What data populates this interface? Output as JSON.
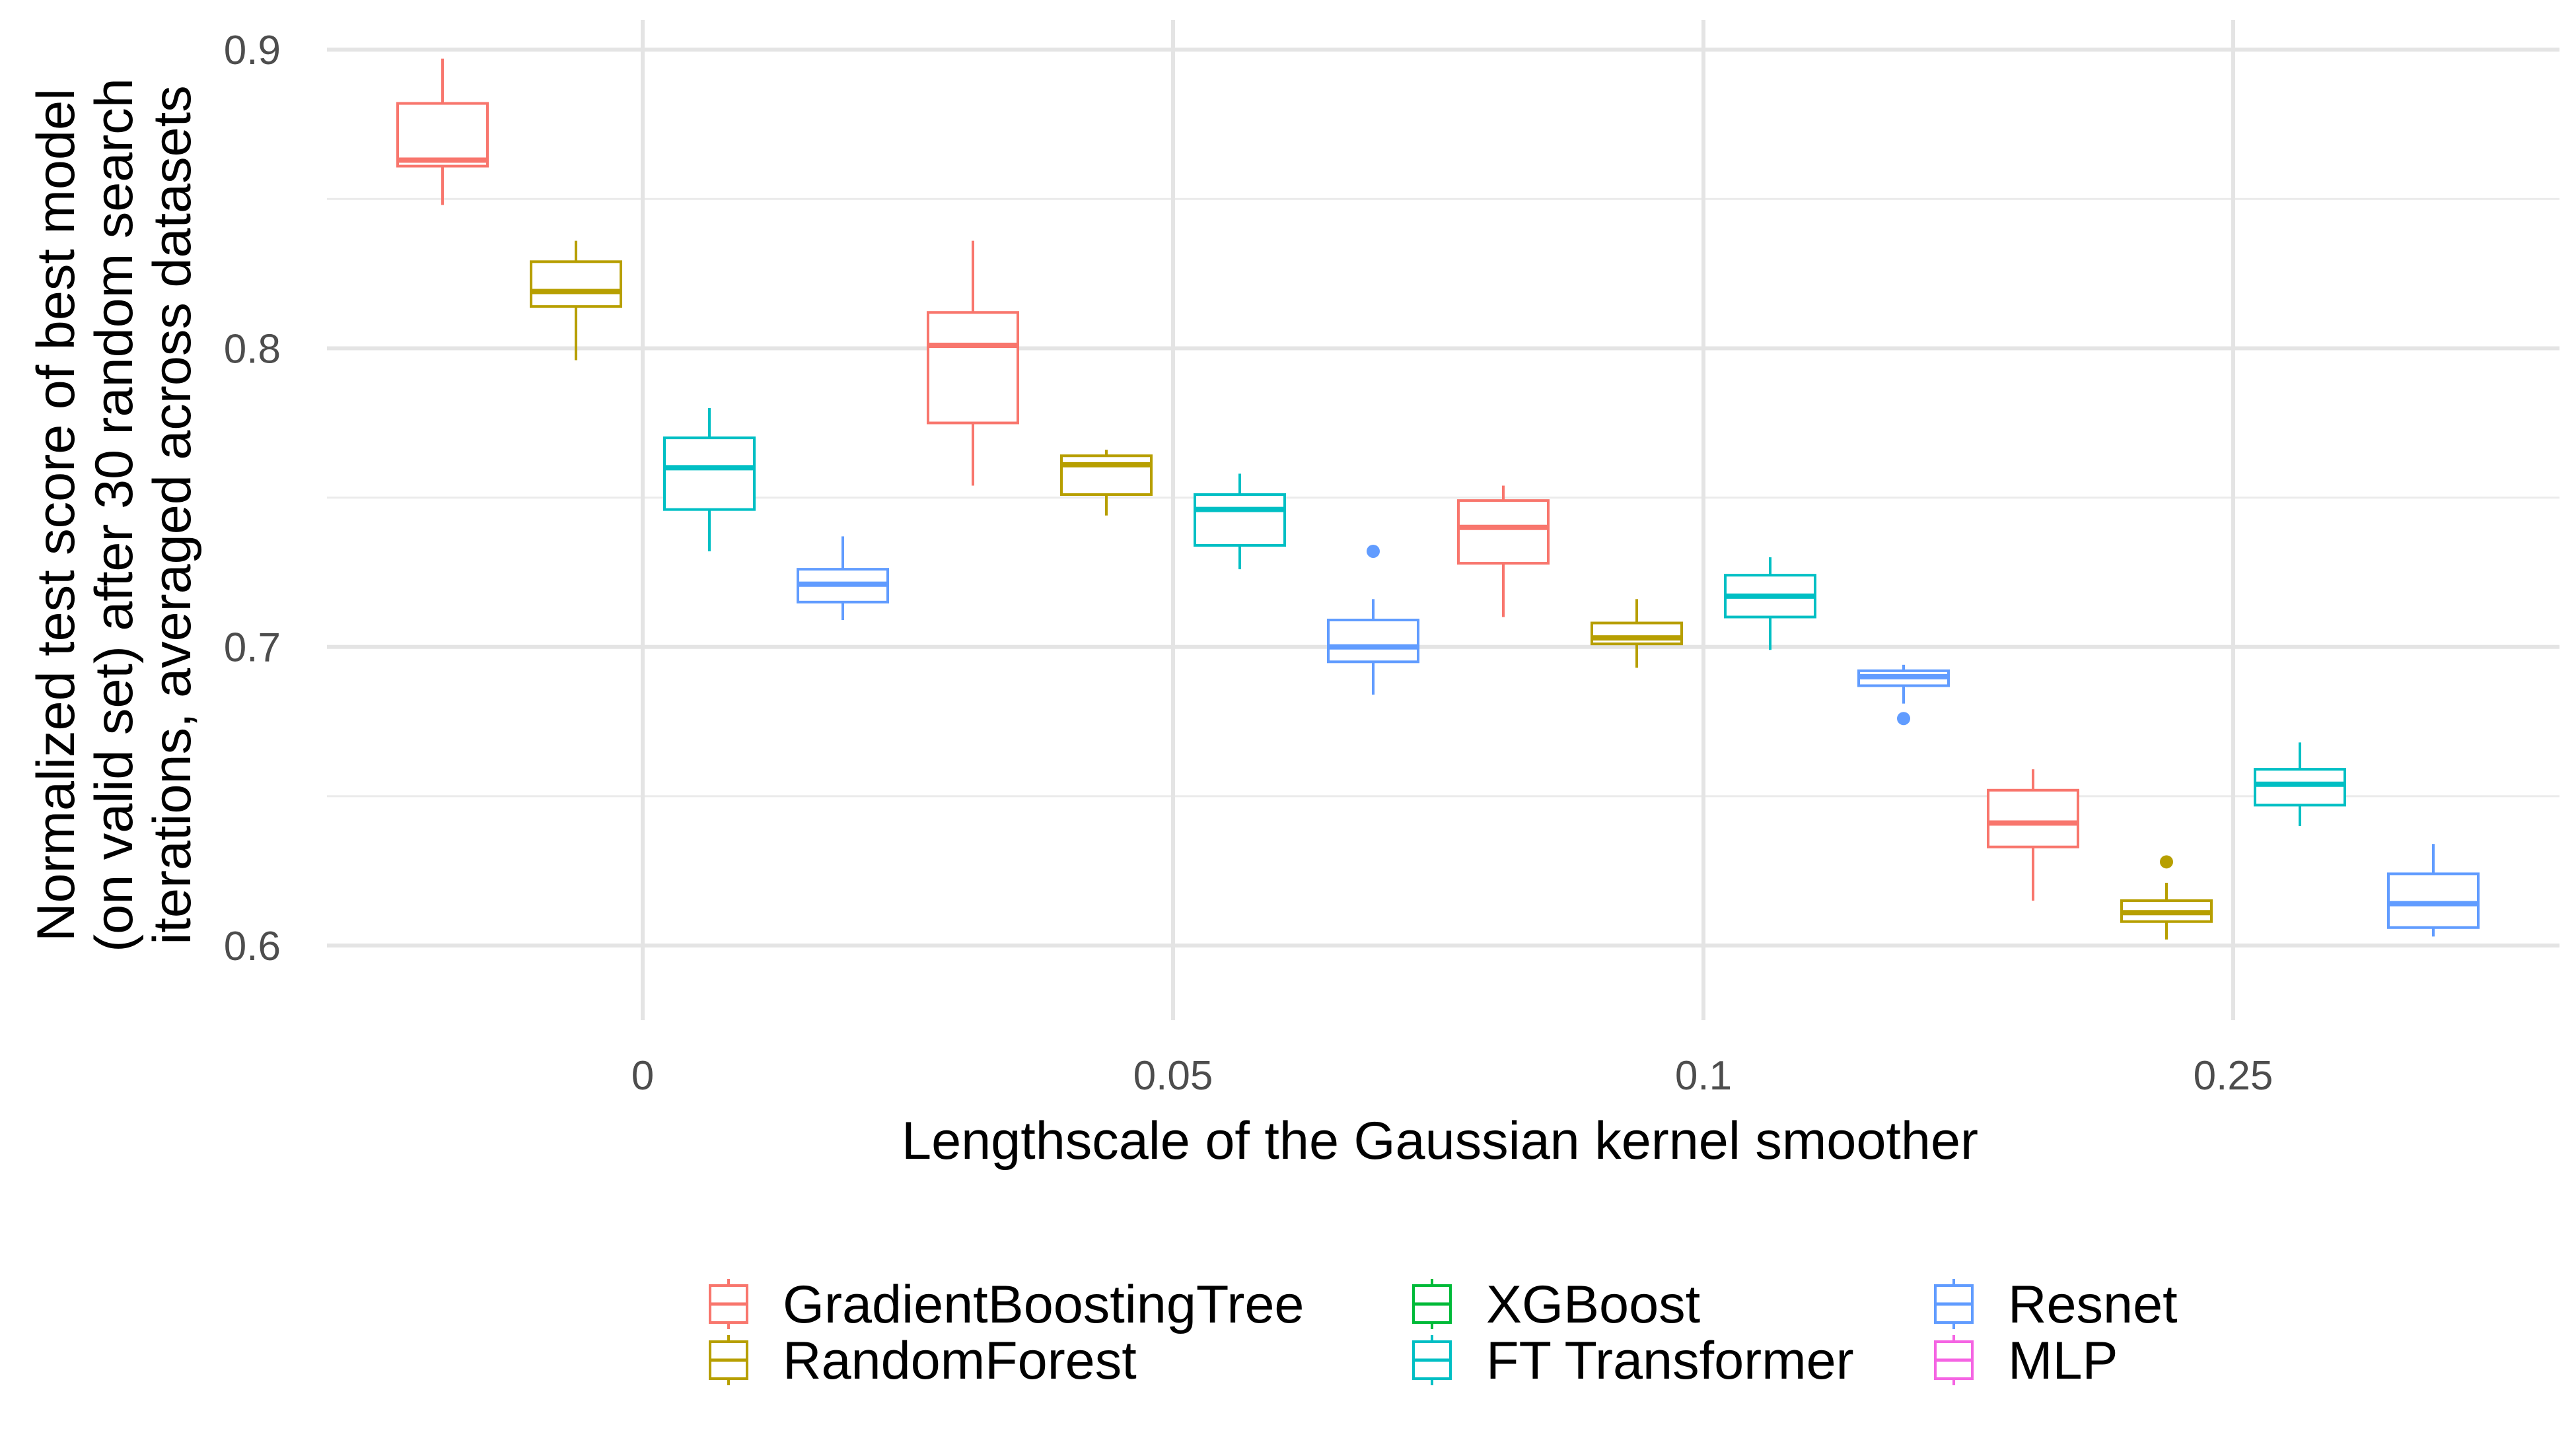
{
  "chart_data": {
    "type": "boxplot",
    "title": "",
    "xlabel": "Lengthscale of the Gaussian kernel smoother",
    "ylabel_lines": [
      "Normalized test score of best model",
      "(on valid set) after 30 random search",
      "iterations, averaged across datasets"
    ],
    "categories": [
      "0",
      "0.05",
      "0.1",
      "0.25"
    ],
    "ylim": [
      0.575,
      0.91
    ],
    "yticks": [
      0.6,
      0.7,
      0.8,
      0.9
    ],
    "ytick_labels": [
      "0.6",
      "0.7",
      "0.8",
      "0.9"
    ],
    "grid": true,
    "legend_position": "bottom",
    "series": [
      {
        "name": "GradientBoostingTree",
        "color": "#F8766D",
        "boxes": [
          {
            "category": "0",
            "lower_whisker": 0.848,
            "q1": 0.861,
            "median": 0.863,
            "q3": 0.882,
            "upper_whisker": 0.897,
            "outliers": []
          },
          {
            "category": "0.05",
            "lower_whisker": 0.754,
            "q1": 0.775,
            "median": 0.801,
            "q3": 0.812,
            "upper_whisker": 0.836,
            "outliers": []
          },
          {
            "category": "0.1",
            "lower_whisker": 0.71,
            "q1": 0.728,
            "median": 0.74,
            "q3": 0.749,
            "upper_whisker": 0.754,
            "outliers": []
          },
          {
            "category": "0.25",
            "lower_whisker": 0.615,
            "q1": 0.633,
            "median": 0.641,
            "q3": 0.652,
            "upper_whisker": 0.659,
            "outliers": []
          }
        ]
      },
      {
        "name": "RandomForest",
        "color": "#B79F00",
        "boxes": [
          {
            "category": "0",
            "lower_whisker": 0.796,
            "q1": 0.814,
            "median": 0.819,
            "q3": 0.829,
            "upper_whisker": 0.836,
            "outliers": []
          },
          {
            "category": "0.05",
            "lower_whisker": 0.744,
            "q1": 0.751,
            "median": 0.761,
            "q3": 0.764,
            "upper_whisker": 0.766,
            "outliers": []
          },
          {
            "category": "0.1",
            "lower_whisker": 0.693,
            "q1": 0.701,
            "median": 0.703,
            "q3": 0.708,
            "upper_whisker": 0.716,
            "outliers": []
          },
          {
            "category": "0.25",
            "lower_whisker": 0.602,
            "q1": 0.608,
            "median": 0.611,
            "q3": 0.615,
            "upper_whisker": 0.621,
            "outliers": [
              0.628
            ]
          }
        ]
      },
      {
        "name": "XGBoost",
        "color": "#00BA38",
        "boxes": []
      },
      {
        "name": "FT Transformer",
        "color": "#00BFC4",
        "boxes": [
          {
            "category": "0",
            "lower_whisker": 0.732,
            "q1": 0.746,
            "median": 0.76,
            "q3": 0.77,
            "upper_whisker": 0.78,
            "outliers": []
          },
          {
            "category": "0.05",
            "lower_whisker": 0.726,
            "q1": 0.734,
            "median": 0.746,
            "q3": 0.751,
            "upper_whisker": 0.758,
            "outliers": []
          },
          {
            "category": "0.1",
            "lower_whisker": 0.699,
            "q1": 0.71,
            "median": 0.717,
            "q3": 0.724,
            "upper_whisker": 0.73,
            "outliers": []
          },
          {
            "category": "0.25",
            "lower_whisker": 0.64,
            "q1": 0.647,
            "median": 0.654,
            "q3": 0.659,
            "upper_whisker": 0.668,
            "outliers": []
          }
        ]
      },
      {
        "name": "Resnet",
        "color": "#619CFF",
        "boxes": [
          {
            "category": "0",
            "lower_whisker": 0.709,
            "q1": 0.715,
            "median": 0.721,
            "q3": 0.726,
            "upper_whisker": 0.737,
            "outliers": []
          },
          {
            "category": "0.05",
            "lower_whisker": 0.684,
            "q1": 0.695,
            "median": 0.7,
            "q3": 0.709,
            "upper_whisker": 0.716,
            "outliers": [
              0.732
            ]
          },
          {
            "category": "0.1",
            "lower_whisker": 0.681,
            "q1": 0.687,
            "median": 0.69,
            "q3": 0.692,
            "upper_whisker": 0.694,
            "outliers": [
              0.676
            ]
          },
          {
            "category": "0.25",
            "lower_whisker": 0.603,
            "q1": 0.606,
            "median": 0.614,
            "q3": 0.624,
            "upper_whisker": 0.634,
            "outliers": []
          }
        ]
      },
      {
        "name": "MLP",
        "color": "#F564E3",
        "boxes": []
      }
    ],
    "legend_order": [
      "GradientBoostingTree",
      "RandomForest",
      "XGBoost",
      "FT Transformer",
      "Resnet",
      "MLP"
    ]
  }
}
